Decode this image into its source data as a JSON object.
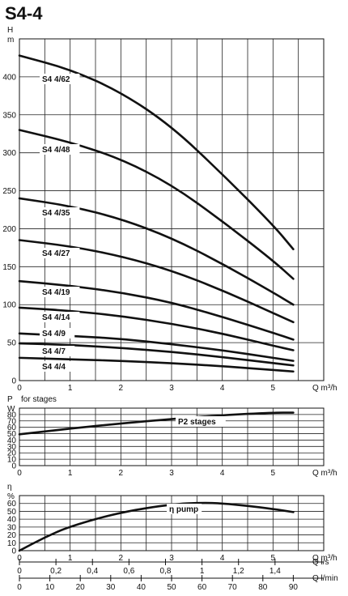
{
  "title": "S4-4",
  "chart_data": [
    {
      "type": "line",
      "ylabel": "H",
      "yunit": "m",
      "xlabel": "Q m³/h",
      "xlim": [
        0,
        6
      ],
      "ylim": [
        0,
        450
      ],
      "xticks": [
        0,
        1,
        2,
        3,
        4,
        5
      ],
      "yticks": [
        0,
        50,
        100,
        150,
        200,
        250,
        300,
        350,
        400
      ],
      "grid": true,
      "series": [
        {
          "name": "S4 4/62",
          "x": [
            0,
            1,
            2,
            3,
            4,
            5,
            5.4
          ],
          "y": [
            428,
            410,
            380,
            335,
            272,
            205,
            173
          ]
        },
        {
          "name": "S4 4/48",
          "x": [
            0,
            1,
            2,
            3,
            4,
            5,
            5.4
          ],
          "y": [
            330,
            314,
            292,
            258,
            210,
            158,
            134
          ]
        },
        {
          "name": "S4 4/35",
          "x": [
            0,
            1,
            2,
            3,
            4,
            5,
            5.4
          ],
          "y": [
            240,
            230,
            213,
            188,
            154,
            116,
            100
          ]
        },
        {
          "name": "S4 4/27",
          "x": [
            0,
            1,
            2,
            3,
            4,
            5,
            5.4
          ],
          "y": [
            185,
            177,
            164,
            145,
            119,
            89,
            77
          ]
        },
        {
          "name": "S4 4/19",
          "x": [
            0,
            1,
            2,
            3,
            4,
            5,
            5.4
          ],
          "y": [
            131,
            125,
            116,
            103,
            84,
            63,
            54
          ]
        },
        {
          "name": "S4 4/14",
          "x": [
            0,
            1,
            2,
            3,
            4,
            5,
            5.4
          ],
          "y": [
            96,
            92,
            85,
            75,
            62,
            46,
            40
          ]
        },
        {
          "name": "S4 4/9",
          "x": [
            0,
            1,
            2,
            3,
            4,
            5,
            5.4
          ],
          "y": [
            62,
            59,
            55,
            48,
            40,
            30,
            26
          ]
        },
        {
          "name": "S4 4/7",
          "x": [
            0,
            1,
            2,
            3,
            4,
            5,
            5.4
          ],
          "y": [
            49,
            47,
            43,
            38,
            31,
            23,
            20
          ]
        },
        {
          "name": "S4 4/4",
          "x": [
            0,
            1,
            2,
            3,
            4,
            5,
            5.4
          ],
          "y": [
            30,
            28,
            26,
            23,
            19,
            14,
            12
          ]
        }
      ]
    },
    {
      "type": "line",
      "ylabel": "P",
      "ylabel_note": "for stages",
      "yunit": "W",
      "xlabel": "Q m³/h",
      "xlim": [
        0,
        6
      ],
      "ylim": [
        0,
        90
      ],
      "xticks": [
        0,
        1,
        2,
        3,
        4,
        5
      ],
      "yticks": [
        0,
        10,
        20,
        30,
        40,
        50,
        60,
        70,
        80
      ],
      "grid": true,
      "series": [
        {
          "name": "P2 stages",
          "x": [
            0,
            1,
            2,
            3,
            4,
            5,
            5.4
          ],
          "y": [
            49,
            58,
            66,
            73,
            79,
            83,
            83
          ]
        }
      ]
    },
    {
      "type": "line",
      "ylabel": "η",
      "yunit": "%",
      "xlabel": "Q m³/h",
      "xlim": [
        0,
        6
      ],
      "ylim": [
        0,
        70
      ],
      "xticks": [
        0,
        1,
        2,
        3,
        4,
        5
      ],
      "yticks": [
        0,
        10,
        20,
        30,
        40,
        50,
        60
      ],
      "grid": true,
      "series": [
        {
          "name": "η pump",
          "x": [
            0,
            0.5,
            1,
            2,
            3,
            3.6,
            4,
            4.5,
            5,
            5.4
          ],
          "y": [
            0,
            17,
            31,
            49,
            59,
            61,
            60,
            57,
            53,
            49
          ]
        }
      ],
      "secondary_axes": [
        {
          "label": "Q l/s",
          "ticks": [
            "0",
            "0,2",
            "0,4",
            "0,6",
            "0,8",
            "1",
            "1,2",
            "1,4"
          ],
          "values": [
            0,
            0.2,
            0.4,
            0.6,
            0.8,
            1.0,
            1.2,
            1.4
          ]
        },
        {
          "label": "Q l/min",
          "ticks": [
            "0",
            "10",
            "20",
            "30",
            "40",
            "50",
            "60",
            "70",
            "80",
            "90"
          ],
          "values": [
            0,
            10,
            20,
            30,
            40,
            50,
            60,
            70,
            80,
            90
          ]
        }
      ]
    }
  ]
}
